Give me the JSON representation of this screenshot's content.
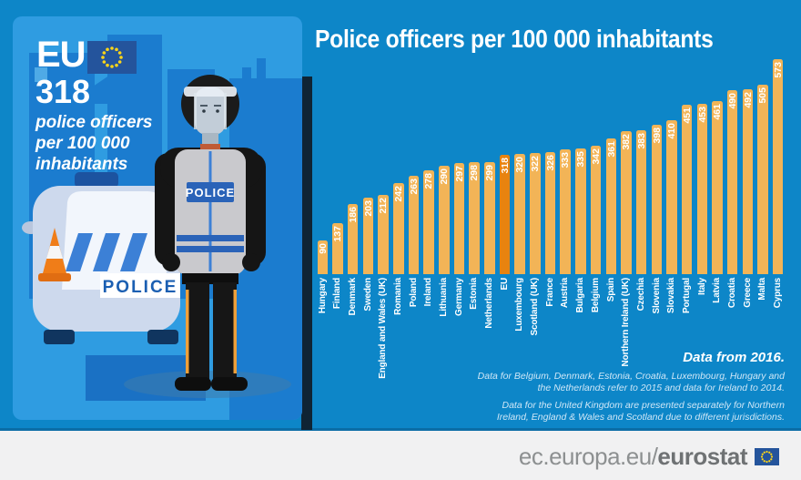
{
  "panel": {
    "eu_label": "EU",
    "eu_value": "318",
    "caption_line1": "police officers",
    "caption_line2": "per 100 000",
    "caption_line3": "inhabitants",
    "vest_label": "POLICE",
    "car_label": "POLICE"
  },
  "chart_data": {
    "type": "bar",
    "title": "Police officers per 100 000 inhabitants",
    "categories": [
      "Hungary",
      "Finland",
      "Denmark",
      "Sweden",
      "England and Wales (UK)",
      "Romania",
      "Poland",
      "Ireland",
      "Lithuania",
      "Germany",
      "Estonia",
      "Netherlands",
      "EU",
      "Luxembourg",
      "Scotland (UK)",
      "France",
      "Austria",
      "Bulgaria",
      "Belgium",
      "Spain",
      "Northern Ireland (UK)",
      "Czechia",
      "Slovenia",
      "Slovakia",
      "Portugal",
      "Italy",
      "Latvia",
      "Croatia",
      "Greece",
      "Malta",
      "Cyprus"
    ],
    "values": [
      90,
      137,
      186,
      203,
      212,
      242,
      263,
      278,
      290,
      297,
      298,
      299,
      318,
      320,
      322,
      326,
      333,
      335,
      342,
      361,
      382,
      383,
      398,
      410,
      451,
      453,
      461,
      490,
      492,
      505,
      573
    ],
    "highlight_index": 12,
    "bar_color": "#f2b457",
    "highlight_color": "#e8830f",
    "value_label_color": "#ffffff",
    "axis_label_color": "#ffffff",
    "background": "#0d86c8",
    "ylim": [
      0,
      573
    ],
    "grid": false,
    "legend": false
  },
  "notes": {
    "data_from": "Data from 2016.",
    "footnote_1": "Data for Belgium, Denmark, Estonia, Croatia, Luxembourg, Hungary and the Netherlands refer to 2015 and data for Ireland to 2014.",
    "footnote_2": "Data for the United Kingdom are presented separately for Northern Ireland, England & Wales and Scotland due to different jurisdictions."
  },
  "footer": {
    "url_prefix": "ec.europa.eu/",
    "url_bold": "eurostat"
  },
  "colors": {
    "page_background": "#0d86c8",
    "card_background": "#2f9ce1",
    "building_blue": "#1b7ccf",
    "footer_background": "#f1f1f2",
    "flag_blue": "#24549c",
    "star_yellow": "#ffd617",
    "cone_orange": "#f07d18",
    "stripe_blue": "#3c80d6",
    "police_text_blue": "#1b5fb2"
  }
}
